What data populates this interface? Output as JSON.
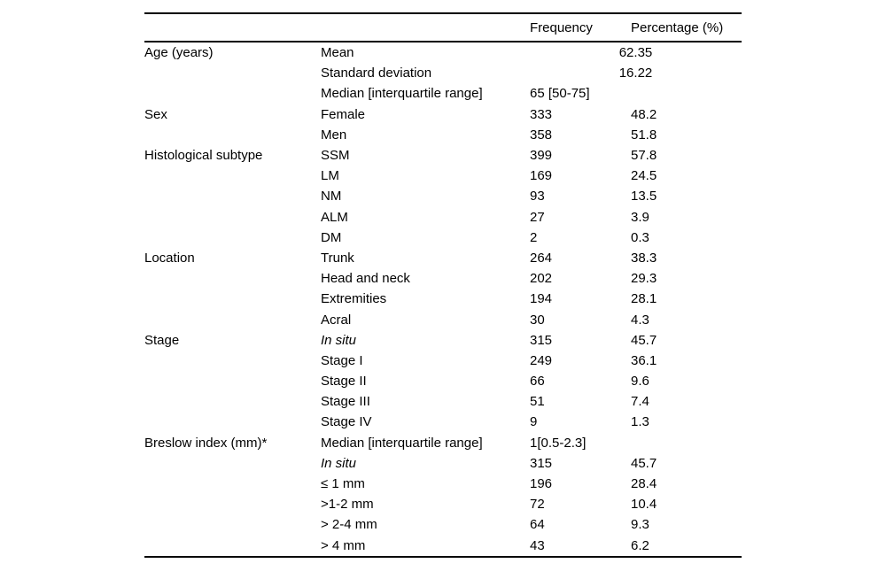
{
  "table": {
    "headers": {
      "category": "",
      "subcategory": "",
      "frequency": "Frequency",
      "percentage": "Percentage (%)"
    },
    "rows": [
      {
        "category": "Age (years)",
        "label": "Mean",
        "span": "62.35"
      },
      {
        "category": "",
        "label": "Standard deviation",
        "span": "16.22"
      },
      {
        "category": "",
        "label": "Median [interquartile range]",
        "freq": "65 [50-75]",
        "pct": ""
      },
      {
        "category": "Sex",
        "label": "Female",
        "freq": "333",
        "pct": "48.2"
      },
      {
        "category": "",
        "label": "Men",
        "freq": "358",
        "pct": "51.8"
      },
      {
        "category": "Histological subtype",
        "label": "SSM",
        "freq": "399",
        "pct": "57.8"
      },
      {
        "category": "",
        "label": "LM",
        "freq": "169",
        "pct": "24.5"
      },
      {
        "category": "",
        "label": "NM",
        "freq": "93",
        "pct": "13.5"
      },
      {
        "category": "",
        "label": "ALM",
        "freq": "27",
        "pct": "3.9"
      },
      {
        "category": "",
        "label": "DM",
        "freq": "2",
        "pct": "0.3"
      },
      {
        "category": "Location",
        "label": "Trunk",
        "freq": "264",
        "pct": "38.3"
      },
      {
        "category": "",
        "label": "Head and neck",
        "freq": "202",
        "pct": "29.3"
      },
      {
        "category": "",
        "label": "Extremities",
        "freq": "194",
        "pct": "28.1"
      },
      {
        "category": "",
        "label": "Acral",
        "freq": "30",
        "pct": "4.3"
      },
      {
        "category": "Stage",
        "label": "In situ",
        "italic": true,
        "freq": "315",
        "pct": "45.7"
      },
      {
        "category": "",
        "label": "Stage I",
        "freq": "249",
        "pct": "36.1"
      },
      {
        "category": "",
        "label": "Stage II",
        "freq": "66",
        "pct": "9.6"
      },
      {
        "category": "",
        "label": "Stage III",
        "freq": "51",
        "pct": "7.4"
      },
      {
        "category": "",
        "label": "Stage IV",
        "freq": "9",
        "pct": "1.3"
      },
      {
        "category": "Breslow index (mm)*",
        "label": "Median [interquartile range]",
        "freq": "1[0.5-2.3]",
        "pct": ""
      },
      {
        "category": "",
        "label": "In situ",
        "italic": true,
        "freq": "315",
        "pct": "45.7"
      },
      {
        "category": "",
        "label": "≤ 1 mm",
        "freq": "196",
        "pct": "28.4"
      },
      {
        "category": "",
        "label": ">1-2 mm",
        "freq": "72",
        "pct": "10.4"
      },
      {
        "category": "",
        "label": "> 2-4 mm",
        "freq": "64",
        "pct": "9.3"
      },
      {
        "category": "",
        "label": "> 4 mm",
        "freq": "43",
        "pct": "6.2"
      }
    ]
  }
}
